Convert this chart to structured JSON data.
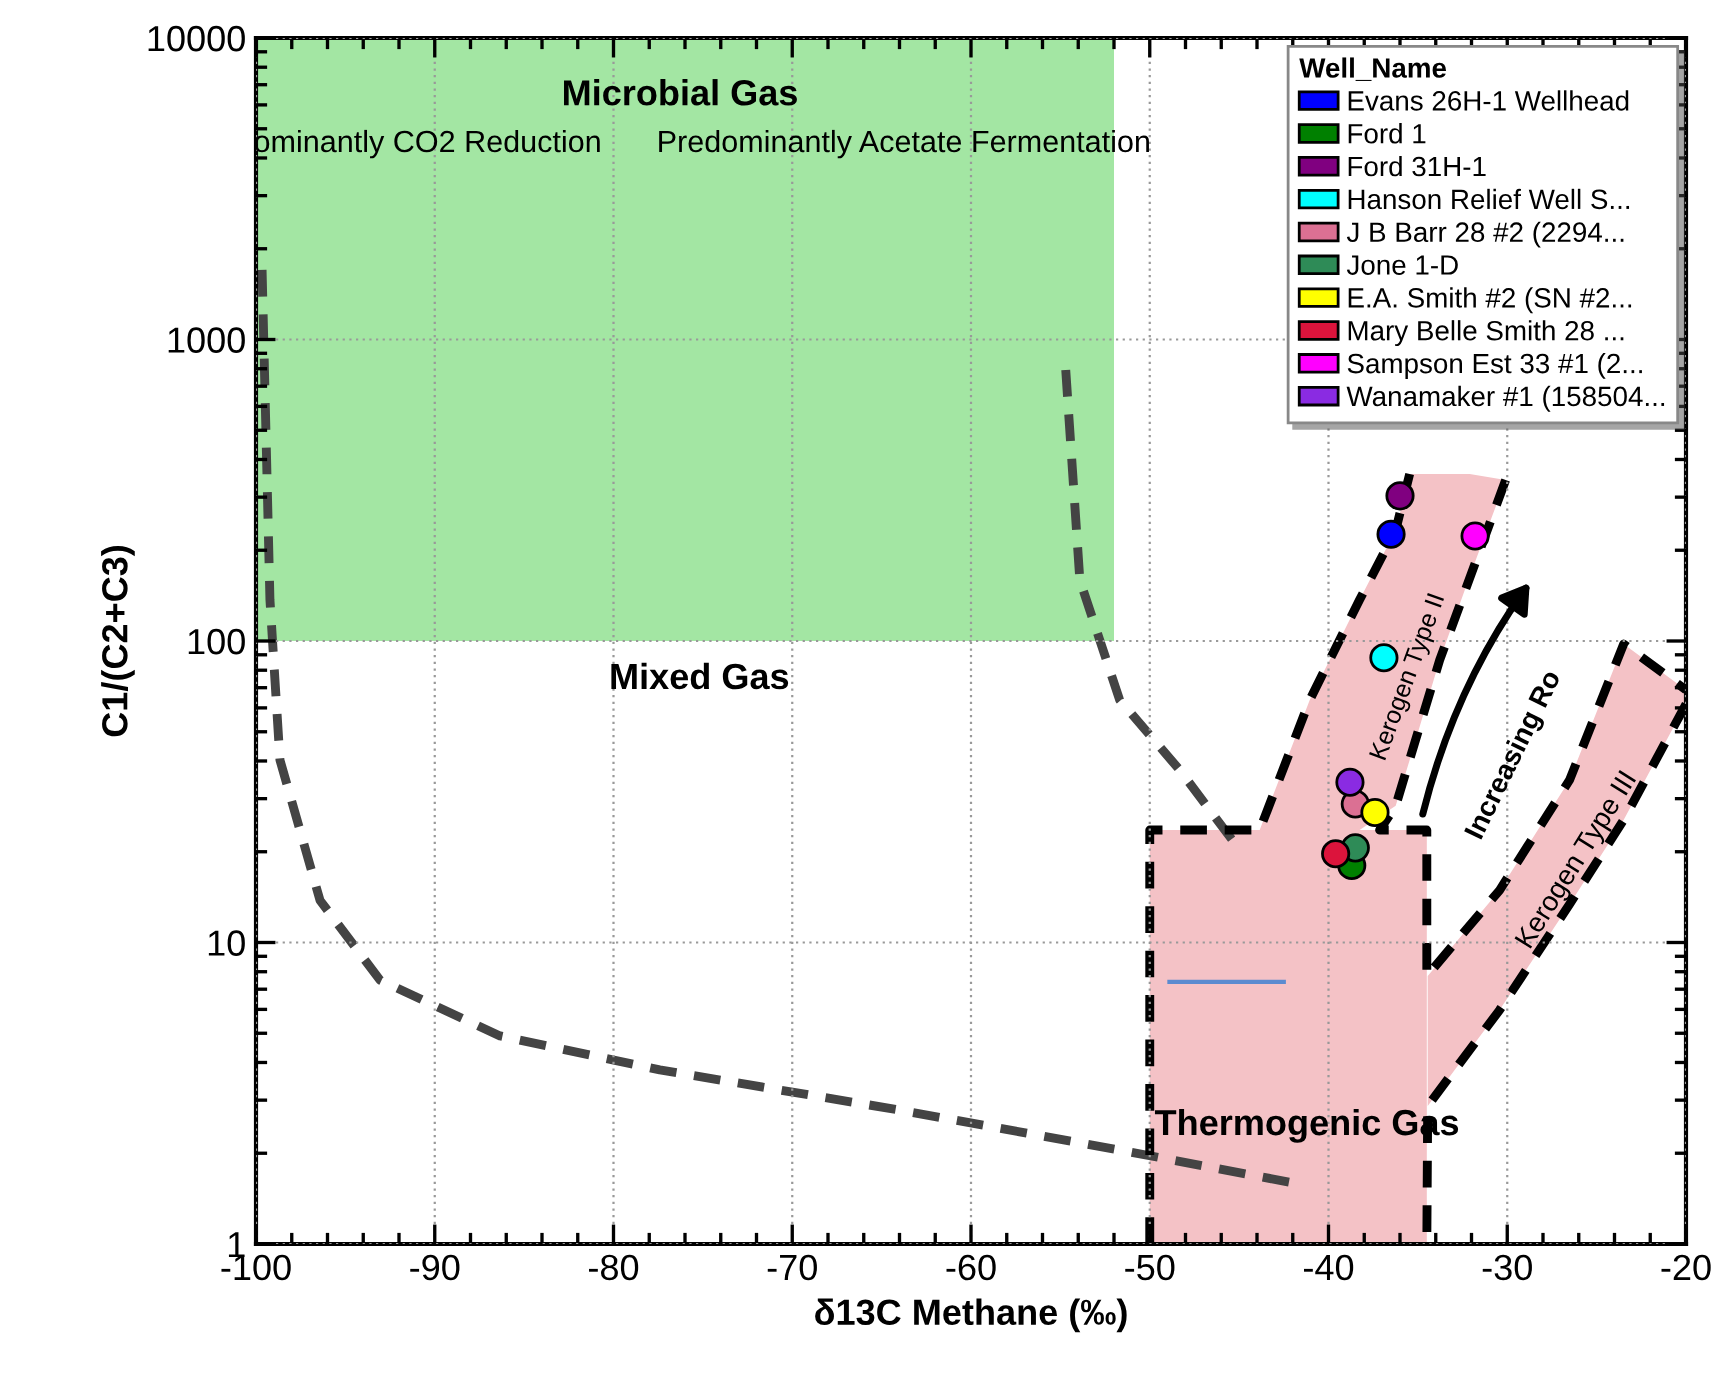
{
  "chart_data": {
    "type": "scatter",
    "xlabel": "δ13C Methane (‰)",
    "ylabel": "C1/(C2+C3)",
    "xlim": [
      -100,
      -20
    ],
    "ylim": [
      1,
      10000
    ],
    "xticks": [
      -100,
      -90,
      -80,
      -70,
      -60,
      -50,
      -40,
      -30,
      -20
    ],
    "yticks": [
      1,
      10,
      100,
      1000,
      10000
    ],
    "log": "y",
    "grid": true,
    "legend": "top right",
    "legend_title": "Well_Name",
    "marker": "circle",
    "series": [
      {
        "type": "area",
        "color": "#a3e6a3",
        "x": [
          -100,
          -52
        ],
        "values": [
          null,
          null
        ],
        "lower": [
          100,
          100
        ],
        "upper": [
          10000,
          10000
        ]
      },
      {
        "type": "area",
        "color": "#f4c2c6",
        "x": [
          -50,
          -34.5
        ],
        "values": [
          null,
          null
        ],
        "lower": [
          1,
          1
        ],
        "upper": [
          23.6,
          23.6
        ]
      },
      {
        "type": "area",
        "color": "#f4c2c6",
        "x": [
          -43.85,
          -41.05,
          -38.26,
          -36.24,
          -35.46,
          -33.78,
          -32.1,
          -30.09
        ],
        "values": [
          null,
          null,
          null,
          null,
          null,
          null,
          null,
          null
        ],
        "lower": [
          23.6,
          23.6,
          23.6,
          28.4,
          40.3,
          86.5,
          164,
          342
        ],
        "upper": [
          23.6,
          63.7,
          137,
          233,
          358,
          358,
          358,
          342
        ]
      },
      {
        "type": "area",
        "color": "#f4c2c6",
        "x": [
          -34.45,
          -30.43,
          -26.51,
          -23.49,
          -20
        ],
        "values": [
          null,
          null,
          null,
          null,
          null
        ],
        "lower": [
          2.87,
          5.97,
          13.4,
          25.5,
          61.8
        ],
        "upper": [
          7.74,
          14.9,
          34.6,
          97.7,
          68.8
        ]
      },
      {
        "type": "line",
        "marker": "none",
        "color": "#444444",
        "line_style": "dashed",
        "x": [
          -99.66,
          -99.22,
          -98.66,
          -96.42,
          -93.06,
          -86.35,
          -77.41,
          -63.98,
          -51.68,
          -41.61
        ],
        "values": [
          1702,
          137,
          40.3,
          13.8,
          7.5,
          4.9,
          3.78,
          2.78,
          2.05,
          1.58
        ]
      },
      {
        "type": "line",
        "marker": "none",
        "color": "#444444",
        "line_style": "dashed",
        "x": [
          -54.7,
          -53.91,
          -51.68,
          -48.32,
          -44.97
        ],
        "values": [
          792,
          159,
          63.7,
          37.3,
          20.3
        ]
      },
      {
        "type": "line",
        "marker": "none",
        "color": "#000000",
        "line_style": "dashed",
        "x": [
          -50,
          -50,
          -43.85,
          -41.05,
          -38.26,
          -36.24,
          -35.46
        ],
        "values": [
          1,
          23.6,
          23.6,
          63.7,
          137,
          233,
          358
        ]
      },
      {
        "type": "line",
        "marker": "none",
        "color": "#000000",
        "line_style": "dashed",
        "x": [
          -30.09,
          -33.78,
          -36.24,
          -37.14,
          -34.5,
          -34.5,
          -30.43,
          -26.51,
          -23.49,
          -20
        ],
        "values": [
          342,
          86.5,
          28.4,
          23.6,
          23.6,
          7.74,
          14.9,
          34.6,
          97.7,
          68.8
        ]
      },
      {
        "type": "line",
        "marker": "none",
        "color": "#000000",
        "line_style": "dashed",
        "x": [
          -20,
          -23.49,
          -26.51,
          -30.43,
          -34.45,
          -34.5
        ],
        "values": [
          61.8,
          25.5,
          13.4,
          5.97,
          2.87,
          1
        ]
      },
      {
        "type": "line",
        "marker": "none",
        "color": "#5b8bd0",
        "line_style": "solid",
        "x": [
          -48.9,
          -42.5
        ],
        "values": [
          7.4,
          7.4
        ]
      },
      {
        "name": "Evans 26H-1 Wellhead",
        "color": "#0000ff",
        "x": [
          -36.5
        ],
        "values": [
          226
        ]
      },
      {
        "name": "Ford 1",
        "color": "#008000",
        "x": [
          -38.7
        ],
        "values": [
          18
        ]
      },
      {
        "name": "Ford 31H-1",
        "color": "#800080",
        "x": [
          -36.0
        ],
        "values": [
          303
        ]
      },
      {
        "name": "Hanson Relief Well S...",
        "color": "#00ffff",
        "x": [
          -36.9
        ],
        "values": [
          88
        ]
      },
      {
        "name": "J B Barr 28 #2 (2294...",
        "color": "#db7093",
        "x": [
          -38.5
        ],
        "values": [
          28.8
        ]
      },
      {
        "name": "Jone 1-D",
        "color": "#2e8b57",
        "x": [
          -38.5
        ],
        "values": [
          20.6
        ]
      },
      {
        "name": "E.A. Smith #2 (SN #2...",
        "color": "#ffff00",
        "x": [
          -37.4
        ],
        "values": [
          27
        ]
      },
      {
        "name": "Mary Belle Smith 28 ...",
        "color": "#dc143c",
        "x": [
          -39.6
        ],
        "values": [
          19.7
        ]
      },
      {
        "name": "Sampson Est 33 #1 (2...",
        "color": "#ff00ff",
        "x": [
          -31.8
        ],
        "values": [
          223
        ]
      },
      {
        "name": "Wanamaker #1 (158504...",
        "color": "#8a2be2",
        "x": [
          -38.8
        ],
        "values": [
          34
        ]
      }
    ],
    "annotations": [
      "Microbial Gas",
      "ominantly CO2 Reduction",
      "Predominantly Acetate Fermentation",
      "Mixed Gas",
      "Thermogenic Gas",
      "Kerogen Type II",
      "Kerogen Type III",
      "Increasing Ro"
    ]
  }
}
